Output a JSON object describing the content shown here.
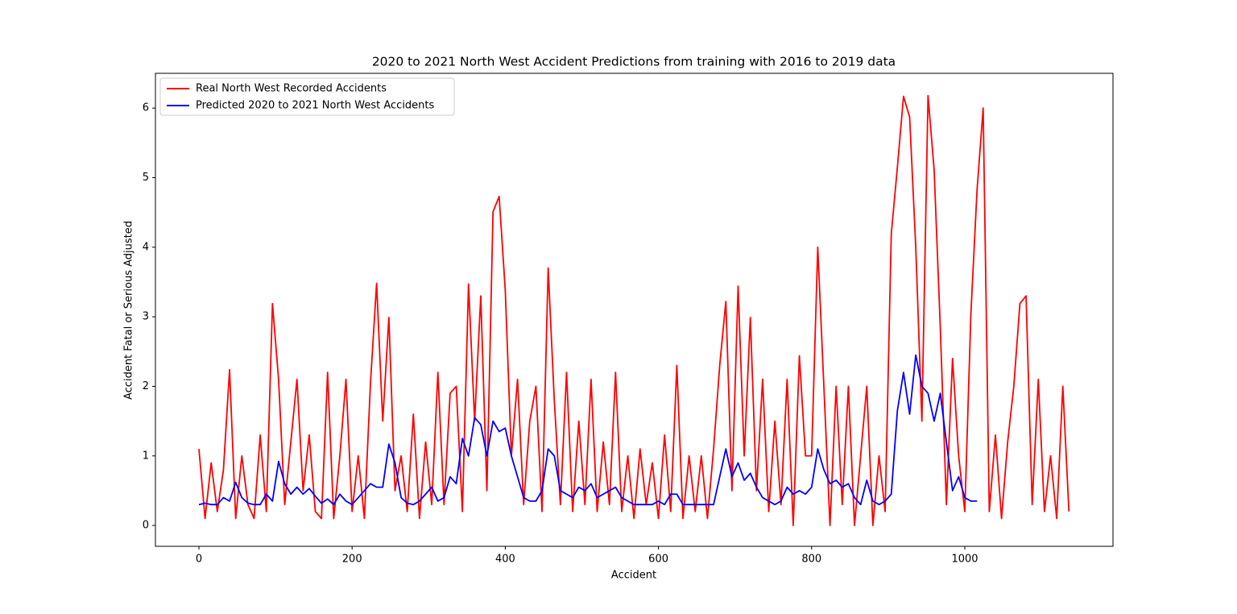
{
  "chart_data": {
    "type": "line",
    "title": "2020 to 2021 North West Accident Predictions from training with 2016 to 2019 data",
    "xlabel": "Accident",
    "ylabel": "Accident Fatal or Serious Adjusted",
    "xlim": [
      -56.8,
      1193.5
    ],
    "ylim": [
      -0.3,
      6.5
    ],
    "xticks": [
      0,
      200,
      400,
      600,
      800,
      1000
    ],
    "yticks": [
      0,
      1,
      2,
      3,
      4,
      5,
      6
    ],
    "legend": "upper left",
    "series": [
      {
        "name": "Real North West Recorded Accidents",
        "color": "#ff0000",
        "x": [
          0,
          8,
          16,
          24,
          32,
          40,
          48,
          56,
          64,
          72,
          80,
          88,
          96,
          104,
          112,
          120,
          128,
          136,
          144,
          152,
          160,
          168,
          176,
          184,
          192,
          200,
          208,
          216,
          224,
          232,
          240,
          248,
          256,
          264,
          272,
          280,
          288,
          296,
          304,
          312,
          320,
          328,
          336,
          344,
          352,
          360,
          368,
          376,
          384,
          392,
          400,
          408,
          416,
          424,
          432,
          440,
          448,
          456,
          464,
          472,
          480,
          488,
          496,
          504,
          512,
          520,
          528,
          536,
          544,
          552,
          560,
          568,
          576,
          584,
          592,
          600,
          608,
          616,
          624,
          632,
          640,
          648,
          656,
          664,
          672,
          680,
          688,
          696,
          704,
          712,
          720,
          728,
          736,
          744,
          752,
          760,
          768,
          776,
          784,
          792,
          800,
          808,
          816,
          824,
          832,
          840,
          848,
          856,
          864,
          872,
          880,
          888,
          896,
          904,
          912,
          920,
          928,
          936,
          944,
          952,
          960,
          968,
          976,
          984,
          992,
          1000,
          1008,
          1016,
          1024,
          1032,
          1040,
          1048,
          1056,
          1064,
          1072,
          1080,
          1088,
          1096,
          1104,
          1112,
          1120,
          1128,
          1136
        ],
        "values": [
          1.1,
          0.1,
          0.9,
          0.2,
          0.8,
          2.24,
          0.1,
          1.0,
          0.3,
          0.1,
          1.3,
          0.2,
          3.19,
          2.1,
          0.3,
          1.2,
          2.1,
          0.5,
          1.3,
          0.2,
          0.1,
          2.2,
          0.1,
          1.0,
          2.1,
          0.2,
          1.0,
          0.1,
          2.05,
          3.48,
          1.5,
          2.99,
          0.5,
          1.0,
          0.2,
          1.6,
          0.1,
          1.2,
          0.3,
          2.2,
          0.3,
          1.9,
          2.0,
          0.2,
          3.47,
          1.5,
          3.3,
          0.5,
          4.51,
          4.73,
          3.38,
          1.0,
          2.1,
          0.3,
          1.5,
          2.0,
          0.2,
          3.7,
          1.8,
          0.3,
          2.2,
          0.2,
          1.5,
          0.3,
          2.1,
          0.2,
          1.2,
          0.3,
          2.2,
          0.2,
          1.0,
          0.1,
          1.1,
          0.3,
          0.9,
          0.1,
          1.3,
          0.2,
          2.3,
          0.1,
          1.0,
          0.2,
          1.0,
          0.1,
          1.1,
          2.3,
          3.22,
          0.5,
          3.44,
          1.0,
          2.99,
          0.5,
          2.1,
          0.2,
          1.5,
          0.3,
          2.1,
          0.0,
          2.44,
          1.0,
          1.0,
          4.0,
          2.0,
          0.0,
          2.0,
          0.3,
          2.0,
          0.0,
          1.0,
          2.0,
          0.0,
          1.0,
          0.2,
          4.19,
          5.15,
          6.17,
          5.87,
          4.0,
          1.5,
          6.18,
          5.11,
          2.85,
          0.3,
          2.4,
          1.0,
          0.2,
          3.05,
          4.82,
          6.0,
          0.2,
          1.3,
          0.1,
          1.2,
          2.0,
          3.19,
          3.3,
          0.3,
          2.1,
          0.2,
          1.0,
          0.1,
          2.0,
          0.2
        ]
      },
      {
        "name": "Predicted 2020 to 2021 North West Accidents",
        "color": "#0000ff",
        "x": [
          0,
          8,
          16,
          24,
          32,
          40,
          48,
          56,
          64,
          72,
          80,
          88,
          96,
          104,
          112,
          120,
          128,
          136,
          144,
          152,
          160,
          168,
          176,
          184,
          192,
          200,
          208,
          216,
          224,
          232,
          240,
          248,
          256,
          264,
          272,
          280,
          288,
          296,
          304,
          312,
          320,
          328,
          336,
          344,
          352,
          360,
          368,
          376,
          384,
          392,
          400,
          408,
          416,
          424,
          432,
          440,
          448,
          456,
          464,
          472,
          480,
          488,
          496,
          504,
          512,
          520,
          528,
          536,
          544,
          552,
          560,
          568,
          576,
          584,
          592,
          600,
          608,
          616,
          624,
          632,
          640,
          648,
          656,
          664,
          672,
          680,
          688,
          696,
          704,
          712,
          720,
          728,
          736,
          744,
          752,
          760,
          768,
          776,
          784,
          792,
          800,
          808,
          816,
          824,
          832,
          840,
          848,
          856,
          864,
          872,
          880,
          888,
          896,
          904,
          912,
          920,
          928,
          936,
          944,
          952,
          960,
          968,
          976,
          984,
          992,
          1000,
          1008,
          1016
        ],
        "values": [
          0.3,
          0.32,
          0.3,
          0.3,
          0.4,
          0.35,
          0.62,
          0.4,
          0.32,
          0.3,
          0.3,
          0.45,
          0.35,
          0.92,
          0.6,
          0.45,
          0.55,
          0.45,
          0.53,
          0.42,
          0.32,
          0.38,
          0.3,
          0.45,
          0.35,
          0.3,
          0.4,
          0.5,
          0.6,
          0.55,
          0.55,
          1.17,
          0.9,
          0.4,
          0.32,
          0.3,
          0.35,
          0.45,
          0.55,
          0.35,
          0.4,
          0.7,
          0.6,
          1.25,
          1.0,
          1.55,
          1.45,
          1.0,
          1.5,
          1.35,
          1.4,
          1.0,
          0.7,
          0.4,
          0.35,
          0.35,
          0.5,
          1.1,
          1.0,
          0.5,
          0.45,
          0.4,
          0.55,
          0.5,
          0.6,
          0.4,
          0.45,
          0.5,
          0.55,
          0.4,
          0.35,
          0.3,
          0.3,
          0.3,
          0.3,
          0.35,
          0.3,
          0.45,
          0.45,
          0.3,
          0.3,
          0.3,
          0.3,
          0.3,
          0.3,
          0.7,
          1.1,
          0.7,
          0.9,
          0.65,
          0.75,
          0.55,
          0.4,
          0.35,
          0.3,
          0.35,
          0.55,
          0.45,
          0.5,
          0.45,
          0.55,
          1.1,
          0.8,
          0.6,
          0.65,
          0.55,
          0.6,
          0.4,
          0.3,
          0.65,
          0.35,
          0.3,
          0.35,
          0.45,
          1.65,
          2.2,
          1.6,
          2.45,
          2.0,
          1.9,
          1.5,
          1.9,
          1.2,
          0.5,
          0.7,
          0.4,
          0.35,
          0.35
        ]
      }
    ]
  }
}
